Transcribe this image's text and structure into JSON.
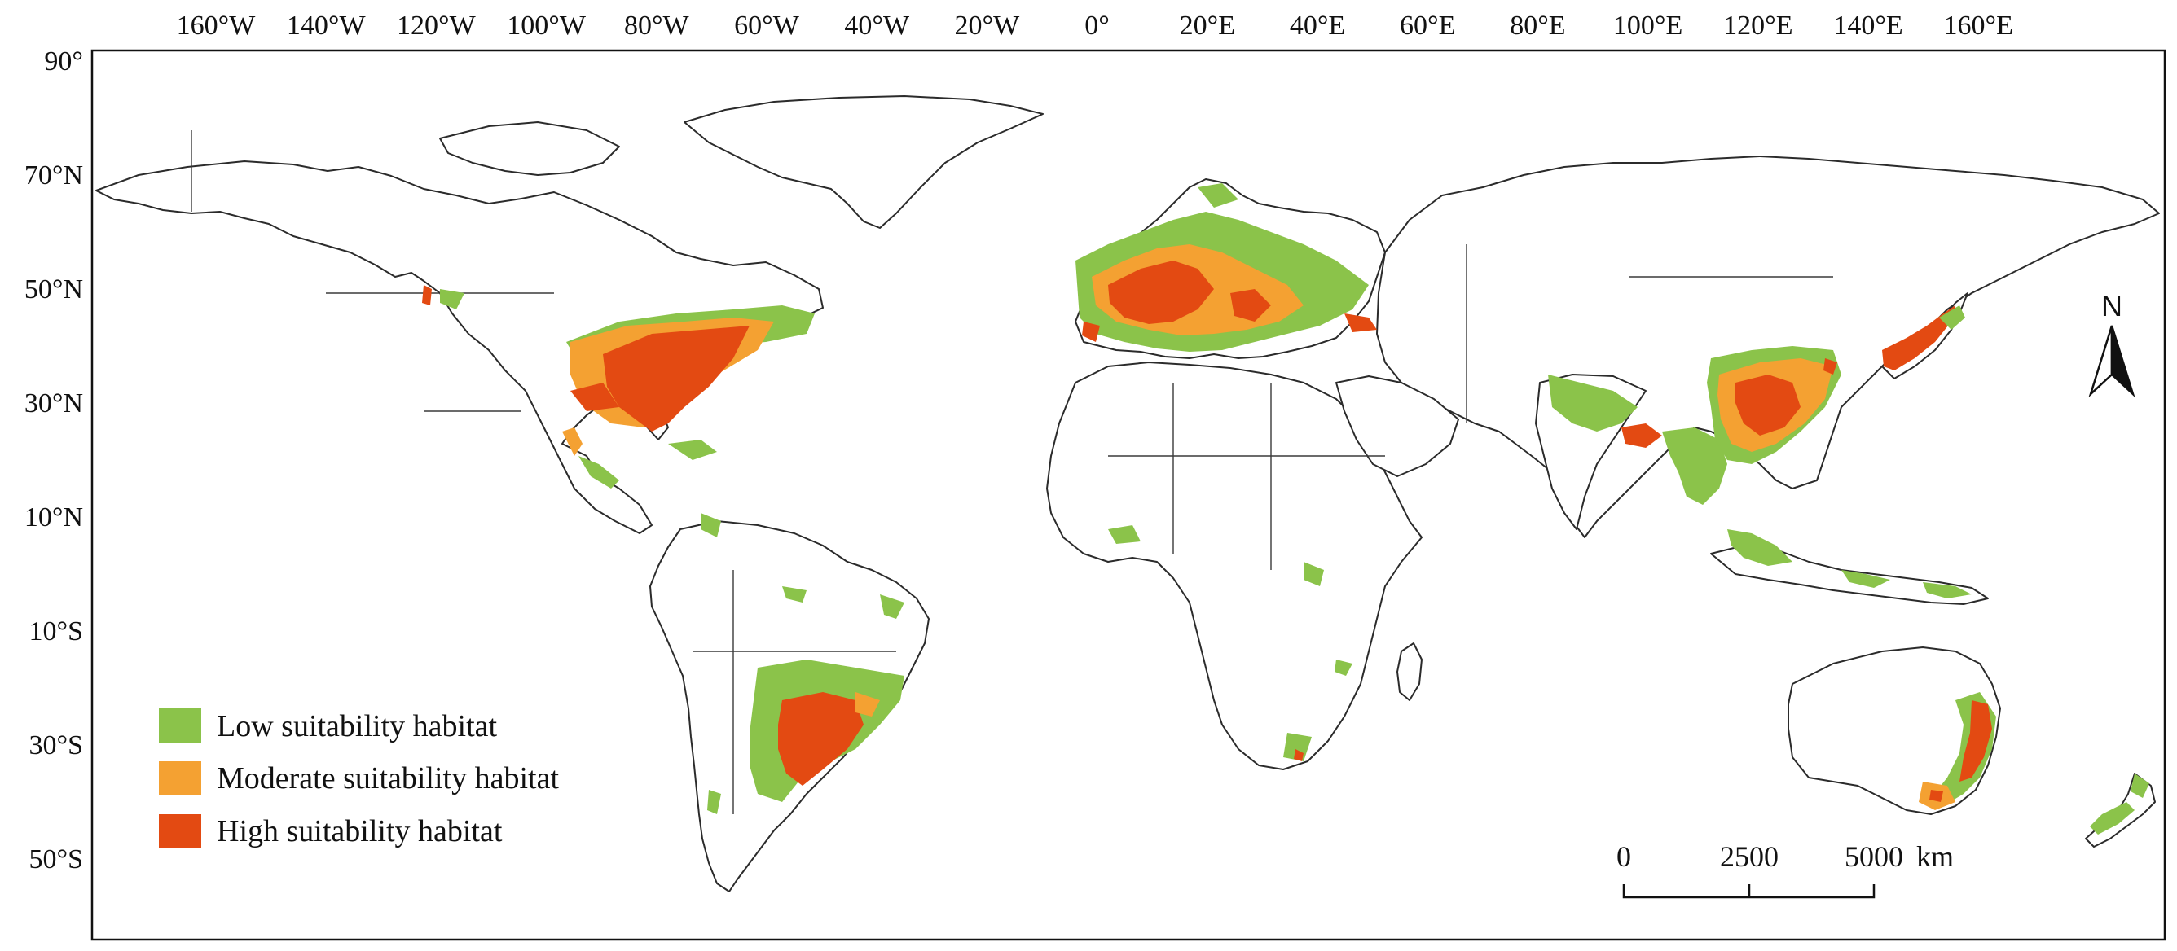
{
  "map": {
    "lon_ticks": [
      "160°W",
      "140°W",
      "120°W",
      "100°W",
      "80°W",
      "60°W",
      "40°W",
      "20°W",
      "0°",
      "20°E",
      "40°E",
      "60°E",
      "80°E",
      "100°E",
      "120°E",
      "140°E",
      "160°E"
    ],
    "lat_ticks": [
      "90°",
      "70°N",
      "50°N",
      "30°N",
      "10°N",
      "10°S",
      "30°S",
      "50°S"
    ],
    "north_arrow_label": "N",
    "scale_bar": {
      "labels": [
        "0",
        "2500",
        "5000"
      ],
      "unit": "km"
    },
    "legend": [
      {
        "label": "Low suitability habitat",
        "color": "#8bc34a"
      },
      {
        "label": "Moderate suitability habitat",
        "color": "#f4a132"
      },
      {
        "label": "High suitability habitat",
        "color": "#e34a12"
      }
    ]
  }
}
